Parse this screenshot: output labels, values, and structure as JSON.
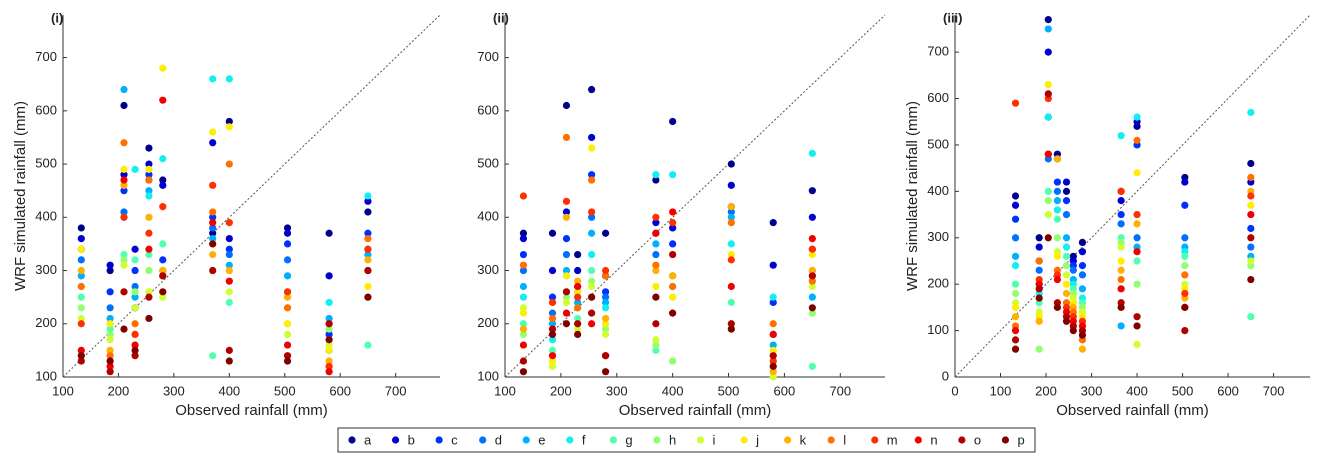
{
  "legend": {
    "names": [
      "a",
      "b",
      "c",
      "d",
      "e",
      "f",
      "g",
      "h",
      "i",
      "j",
      "k",
      "l",
      "m",
      "n",
      "o",
      "p"
    ],
    "colors": [
      "#00008f",
      "#0000d0",
      "#0030ff",
      "#0070ff",
      "#00b0ff",
      "#10f0f0",
      "#50ffb0",
      "#90ff70",
      "#d0ff30",
      "#ffee00",
      "#ffb000",
      "#ff7000",
      "#ff3000",
      "#f00000",
      "#b00000",
      "#800000"
    ]
  },
  "chart_data": [
    {
      "type": "scatter",
      "label": "(i)",
      "xlabel": "Observed rainfall (mm)",
      "ylabel": "WRF simulated rainfall (mm)",
      "diagonal": true,
      "xlim": [
        100,
        780
      ],
      "ylim": [
        100,
        780
      ],
      "xticks": [
        100,
        200,
        300,
        400,
        500,
        600,
        700
      ],
      "yticks": [
        100,
        200,
        300,
        400,
        500,
        600,
        700
      ],
      "x": [
        133,
        185,
        210,
        230,
        255,
        280,
        370,
        400,
        505,
        580,
        650
      ],
      "series": [
        {
          "values": [
            380,
            300,
            610,
            230,
            530,
            470,
            370,
            580,
            380,
            370,
            410
          ]
        },
        {
          "values": [
            360,
            310,
            480,
            340,
            500,
            460,
            540,
            360,
            370,
            290,
            430
          ]
        },
        {
          "values": [
            340,
            260,
            450,
            300,
            480,
            320,
            400,
            340,
            350,
            180,
            370
          ]
        },
        {
          "values": [
            320,
            230,
            410,
            270,
            470,
            300,
            380,
            330,
            320,
            150,
            340
          ]
        },
        {
          "values": [
            290,
            210,
            640,
            250,
            450,
            300,
            360,
            310,
            290,
            210,
            330
          ]
        },
        {
          "values": [
            270,
            200,
            400,
            490,
            440,
            510,
            660,
            660,
            260,
            240,
            440
          ]
        },
        {
          "values": [
            250,
            190,
            330,
            320,
            330,
            350,
            140,
            240,
            230,
            170,
            160
          ]
        },
        {
          "values": [
            230,
            180,
            320,
            260,
            300,
            300,
            300,
            280,
            200,
            190,
            270
          ]
        },
        {
          "values": [
            210,
            170,
            310,
            230,
            260,
            250,
            350,
            260,
            180,
            160,
            250
          ]
        },
        {
          "values": [
            340,
            200,
            490,
            180,
            490,
            680,
            560,
            570,
            200,
            150,
            270
          ]
        },
        {
          "values": [
            300,
            150,
            460,
            160,
            400,
            300,
            330,
            300,
            250,
            130,
            320
          ]
        },
        {
          "values": [
            270,
            140,
            540,
            200,
            470,
            290,
            410,
            500,
            230,
            200,
            360
          ]
        },
        {
          "values": [
            200,
            130,
            400,
            180,
            370,
            420,
            460,
            390,
            260,
            120,
            340
          ]
        },
        {
          "values": [
            150,
            120,
            470,
            160,
            340,
            620,
            390,
            280,
            160,
            110,
            300
          ]
        },
        {
          "values": [
            130,
            110,
            260,
            140,
            250,
            290,
            300,
            150,
            140,
            200,
            300
          ]
        },
        {
          "values": [
            140,
            130,
            190,
            150,
            210,
            260,
            350,
            130,
            130,
            170,
            250
          ]
        }
      ]
    },
    {
      "type": "scatter",
      "label": "(ii)",
      "xlabel": "Observed rainfall (mm)",
      "diagonal": true,
      "xlim": [
        100,
        780
      ],
      "ylim": [
        100,
        780
      ],
      "xticks": [
        100,
        200,
        300,
        400,
        500,
        600,
        700
      ],
      "yticks": [
        100,
        200,
        300,
        400,
        500,
        600,
        700
      ],
      "x": [
        133,
        185,
        210,
        230,
        255,
        280,
        370,
        400,
        505,
        580,
        650
      ],
      "series": [
        {
          "values": [
            370,
            370,
            610,
            330,
            640,
            370,
            470,
            580,
            500,
            390,
            450
          ]
        },
        {
          "values": [
            360,
            300,
            410,
            300,
            550,
            290,
            390,
            380,
            460,
            310,
            400
          ]
        },
        {
          "values": [
            330,
            250,
            360,
            260,
            480,
            260,
            370,
            350,
            420,
            240,
            340
          ]
        },
        {
          "values": [
            300,
            220,
            330,
            270,
            400,
            250,
            330,
            290,
            410,
            180,
            300
          ]
        },
        {
          "values": [
            270,
            200,
            300,
            240,
            370,
            240,
            350,
            270,
            400,
            160,
            250
          ]
        },
        {
          "values": [
            250,
            170,
            290,
            230,
            330,
            230,
            480,
            480,
            350,
            250,
            520
          ]
        },
        {
          "values": [
            200,
            150,
            260,
            210,
            300,
            200,
            150,
            250,
            240,
            130,
            120
          ]
        },
        {
          "values": [
            180,
            130,
            250,
            200,
            280,
            190,
            160,
            130,
            200,
            110,
            220
          ]
        },
        {
          "values": [
            230,
            120,
            240,
            190,
            270,
            180,
            170,
            290,
            190,
            100,
            270
          ]
        },
        {
          "values": [
            220,
            130,
            290,
            260,
            530,
            200,
            270,
            250,
            330,
            150,
            330
          ]
        },
        {
          "values": [
            190,
            190,
            400,
            280,
            250,
            210,
            300,
            290,
            420,
            110,
            300
          ]
        },
        {
          "values": [
            310,
            210,
            550,
            230,
            470,
            290,
            310,
            270,
            390,
            200,
            280
          ]
        },
        {
          "values": [
            440,
            240,
            430,
            250,
            410,
            300,
            400,
            390,
            320,
            130,
            340
          ]
        },
        {
          "values": [
            160,
            140,
            220,
            270,
            200,
            140,
            370,
            410,
            270,
            180,
            360
          ]
        },
        {
          "values": [
            130,
            190,
            260,
            200,
            220,
            140,
            200,
            330,
            200,
            140,
            290
          ]
        },
        {
          "values": [
            110,
            180,
            200,
            180,
            250,
            110,
            250,
            220,
            190,
            120,
            230
          ]
        }
      ]
    },
    {
      "type": "scatter",
      "label": "(iii)",
      "xlabel": "Observed rainfall (mm)",
      "ylabel": "WRF simulated rainfall (mm)",
      "diagonal": true,
      "xlim": [
        0,
        780
      ],
      "ylim": [
        0,
        780
      ],
      "xticks": [
        0,
        100,
        200,
        300,
        400,
        500,
        600,
        700
      ],
      "yticks": [
        0,
        100,
        200,
        300,
        400,
        500,
        600,
        700
      ],
      "x": [
        133,
        185,
        205,
        225,
        245,
        260,
        280,
        365,
        400,
        505,
        650
      ],
      "series": [
        {
          "values": [
            390,
            300,
            770,
            480,
            400,
            260,
            290,
            400,
            540,
            430,
            460
          ]
        },
        {
          "values": [
            370,
            280,
            700,
            470,
            420,
            250,
            270,
            380,
            550,
            420,
            420
          ]
        },
        {
          "values": [
            340,
            250,
            560,
            420,
            380,
            240,
            240,
            350,
            500,
            370,
            320
          ]
        },
        {
          "values": [
            300,
            230,
            470,
            400,
            350,
            230,
            220,
            330,
            300,
            300,
            280
          ]
        },
        {
          "values": [
            260,
            200,
            750,
            380,
            300,
            210,
            190,
            110,
            280,
            280,
            260
          ]
        },
        {
          "values": [
            240,
            180,
            560,
            360,
            280,
            200,
            170,
            520,
            560,
            270,
            570
          ]
        },
        {
          "values": [
            200,
            160,
            400,
            340,
            260,
            190,
            160,
            300,
            250,
            260,
            130
          ]
        },
        {
          "values": [
            180,
            60,
            380,
            300,
            240,
            180,
            150,
            290,
            200,
            240,
            240
          ]
        },
        {
          "values": [
            160,
            140,
            350,
            270,
            220,
            170,
            140,
            280,
            70,
            200,
            250
          ]
        },
        {
          "values": [
            150,
            130,
            630,
            260,
            200,
            160,
            130,
            250,
            440,
            190,
            370
          ]
        },
        {
          "values": [
            130,
            120,
            610,
            470,
            180,
            150,
            60,
            230,
            330,
            170,
            400
          ]
        },
        {
          "values": [
            110,
            250,
            480,
            230,
            160,
            140,
            80,
            210,
            510,
            220,
            430
          ]
        },
        {
          "values": [
            590,
            210,
            600,
            220,
            150,
            130,
            120,
            400,
            350,
            180,
            390
          ]
        },
        {
          "values": [
            100,
            200,
            480,
            210,
            140,
            120,
            110,
            190,
            270,
            150,
            350
          ]
        },
        {
          "values": [
            80,
            190,
            610,
            160,
            130,
            110,
            100,
            160,
            130,
            100,
            300
          ]
        },
        {
          "values": [
            60,
            170,
            300,
            150,
            120,
            100,
            90,
            150,
            110,
            150,
            210
          ]
        }
      ]
    }
  ]
}
